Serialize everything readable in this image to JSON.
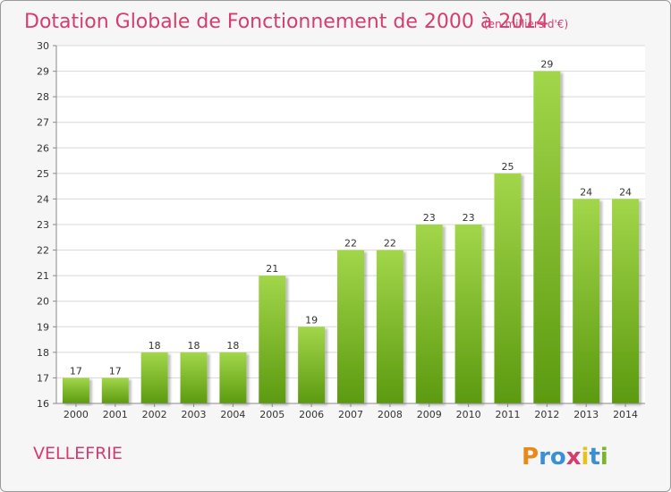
{
  "chart_data": {
    "type": "bar",
    "title": "Dotation Globale de Fonctionnement de 2000 à 2014",
    "unit_note": "(en milliers d'€)",
    "categories": [
      "2000",
      "2001",
      "2002",
      "2003",
      "2004",
      "2005",
      "2006",
      "2007",
      "2008",
      "2009",
      "2010",
      "2011",
      "2012",
      "2013",
      "2014"
    ],
    "values": [
      17,
      17,
      18,
      18,
      18,
      21,
      19,
      22,
      22,
      23,
      23,
      25,
      29,
      24,
      24
    ],
    "ylim": [
      16,
      30
    ],
    "yticks": [
      16,
      17,
      18,
      19,
      20,
      21,
      22,
      23,
      24,
      25,
      26,
      27,
      28,
      29,
      30
    ],
    "grid": true,
    "bar_color_top": "#a2d64a",
    "bar_color_bottom": "#5c9a10"
  },
  "commune": "VELLEFRIE",
  "logo": {
    "letters": [
      "P",
      "r",
      "o",
      "x",
      "i",
      "t",
      "i"
    ],
    "colors": [
      "#e88a1a",
      "#3a8fd6",
      "#3a8fd6",
      "#d63c6e",
      "#e8c21a",
      "#3a8fd6",
      "#7ab52a"
    ]
  }
}
